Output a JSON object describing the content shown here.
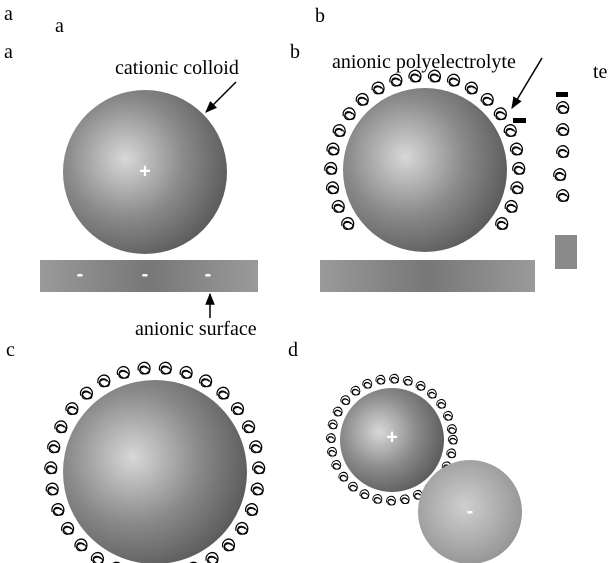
{
  "panels": [
    {
      "label": "a"
    },
    {
      "label": "b"
    },
    {
      "label": "c"
    },
    {
      "label": "d"
    }
  ],
  "labels": {
    "colloid": "cationic colloid",
    "polyelectrolyte": "anionic polyelectrolyte",
    "surface": "anionic surface",
    "cut": "te"
  },
  "signs": {
    "plus": "+",
    "minus": "-"
  }
}
